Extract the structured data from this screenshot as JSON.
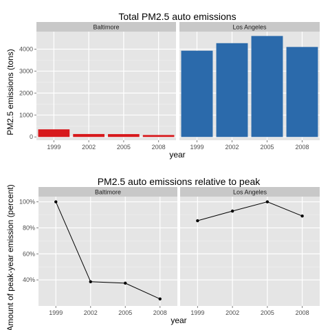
{
  "chart_data": [
    {
      "type": "bar",
      "title": "Total PM2.5 auto emissions",
      "xlabel": "year",
      "ylabel": "PM2.5 emissions (tons)",
      "categories": [
        "1999",
        "2002",
        "2005",
        "2008"
      ],
      "yticks": [
        "0",
        "1000",
        "2000",
        "3000",
        "4000"
      ],
      "ylim": [
        -150,
        4800
      ],
      "grid": true,
      "facets": [
        {
          "name": "Baltimore",
          "color": "#d7191c",
          "values": [
            347,
            134,
            130,
            88
          ]
        },
        {
          "name": "Los Angeles",
          "color": "#2b6aab",
          "values": [
            3931,
            4274,
            4601,
            4101
          ]
        }
      ]
    },
    {
      "type": "line",
      "title": "PM2.5 auto emissions relative to peak",
      "xlabel": "year",
      "ylabel": "Amount of peak-year emission (percent)",
      "categories": [
        "1999",
        "2002",
        "2005",
        "2008"
      ],
      "yticks": [
        "40%",
        "60%",
        "80%",
        "100%"
      ],
      "ylim": [
        20,
        104
      ],
      "grid": true,
      "facets": [
        {
          "name": "Baltimore",
          "values": [
            100,
            38.6,
            37.5,
            25.4
          ]
        },
        {
          "name": "Los Angeles",
          "values": [
            85.5,
            92.9,
            100,
            89.1
          ]
        }
      ]
    }
  ]
}
